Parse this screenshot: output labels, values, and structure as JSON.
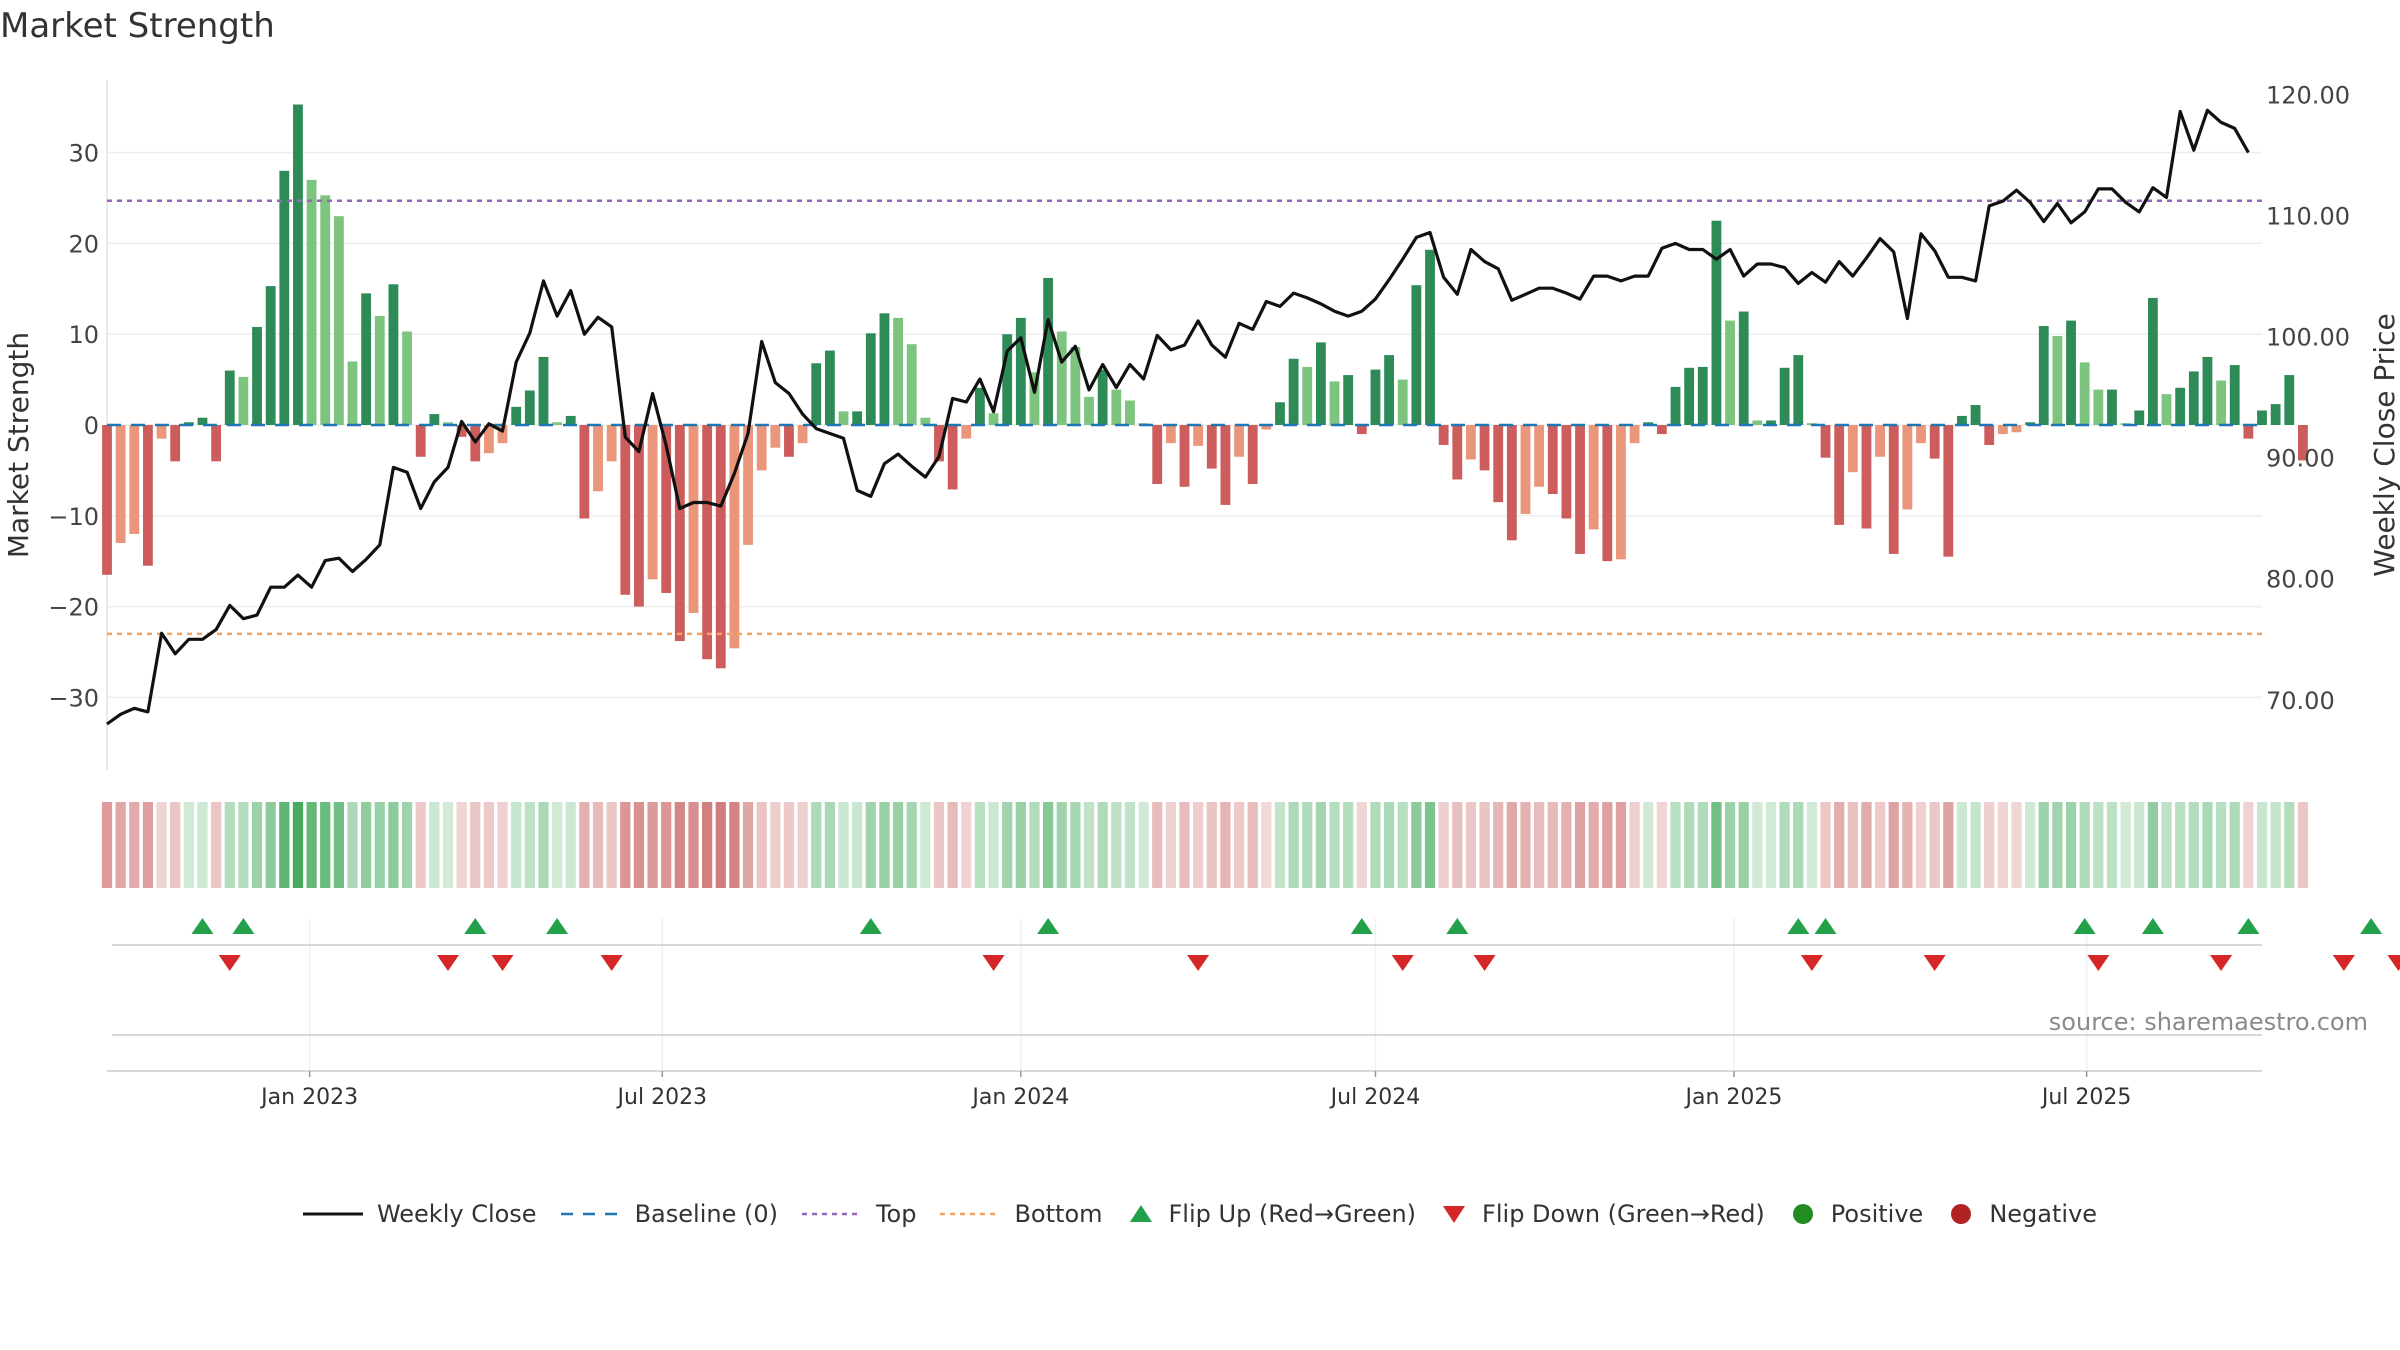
{
  "title": "Market Strength",
  "source": "source: sharemaestro.com",
  "colors": {
    "pos_dark": "#2e8b57",
    "pos_light": "#7dc47f",
    "neg_dark": "#cd5c5c",
    "neg_light": "#e9967a",
    "line": "#111111",
    "baseline": "#1f77b4",
    "top": "#9467bd",
    "bottom": "#f4a460",
    "flip_up": "#22a04a",
    "flip_down": "#d62728",
    "positive_dot": "#228b22",
    "negative_dot": "#b22222"
  },
  "legend": [
    {
      "label": "Weekly Close",
      "kind": "line"
    },
    {
      "label": "Baseline (0)",
      "kind": "baseline"
    },
    {
      "label": "Top",
      "kind": "top"
    },
    {
      "label": "Bottom",
      "kind": "bottom"
    },
    {
      "label": "Flip Up (Red→Green)",
      "kind": "flip_up"
    },
    {
      "label": "Flip Down (Green→Red)",
      "kind": "flip_down"
    },
    {
      "label": "Positive",
      "kind": "positive"
    },
    {
      "label": "Negative",
      "kind": "negative"
    }
  ],
  "chart_data": {
    "type": "bar+line",
    "x_range": [
      "2022-09-19",
      "2025-09-29"
    ],
    "x_ticks": [
      {
        "date": "2023-01-01",
        "label": "Jan 2023"
      },
      {
        "date": "2023-07-01",
        "label": "Jul 2023"
      },
      {
        "date": "2024-01-01",
        "label": "Jan 2024"
      },
      {
        "date": "2024-07-01",
        "label": "Jul 2024"
      },
      {
        "date": "2025-01-01",
        "label": "Jan 2025"
      },
      {
        "date": "2025-07-01",
        "label": "Jul 2025"
      }
    ],
    "start_date": "2022-09-19",
    "week_days": 7,
    "ylabel_left": "Market Strength",
    "ylabel_right": "Weekly Close Price",
    "ylim_left": [
      -38,
      38
    ],
    "ylim_right": [
      64.2,
      121.2
    ],
    "yticks_left": [
      30,
      20,
      10,
      0,
      -10,
      -20,
      -30
    ],
    "ytick_labels_left": [
      "30",
      "20",
      "10",
      "0",
      "−10",
      "−20",
      "−30"
    ],
    "yticks_right": [
      120,
      110,
      100,
      90,
      80,
      70
    ],
    "ytick_labels_right": [
      "120.00",
      "110.00",
      "100.00",
      "90.00",
      "80.00",
      "70.00"
    ],
    "top_line": 24.7,
    "bottom_line": -23.0,
    "strength": [
      -16.5,
      -13,
      -12,
      -15.5,
      -1.5,
      -4,
      0.3,
      0.8,
      -4,
      6,
      5.3,
      10.8,
      15.3,
      28,
      35.3,
      27,
      25.3,
      23,
      7,
      14.5,
      12,
      15.5,
      10.3,
      -3.5,
      1.2,
      0.3,
      -1.3,
      -4,
      -3.1,
      -2,
      2,
      3.8,
      7.5,
      0.3,
      1,
      -10.3,
      -7.3,
      -4,
      -18.7,
      -20,
      -17,
      -18.5,
      -23.8,
      -20.7,
      -25.8,
      -26.8,
      -24.6,
      -13.2,
      -5,
      -2.5,
      -3.5,
      -2,
      6.8,
      8.2,
      1.5,
      1.5,
      10.1,
      12.3,
      11.8,
      8.9,
      0.8,
      -4,
      -7.1,
      -1.5,
      4.1,
      1.3,
      10,
      11.8,
      5.8,
      16.2,
      10.3,
      8.6,
      3.1,
      6.1,
      3.9,
      2.7,
      0.2,
      -6.5,
      -2,
      -6.8,
      -2.3,
      -4.8,
      -8.8,
      -3.5,
      -6.5,
      -0.5,
      2.5,
      7.3,
      6.4,
      9.1,
      4.8,
      5.5,
      -1,
      6.1,
      7.7,
      5,
      15.4,
      19.3,
      -2.2,
      -6,
      -3.8,
      -5,
      -8.5,
      -12.7,
      -9.8,
      -6.8,
      -7.6,
      -10.3,
      -14.2,
      -11.5,
      -15,
      -14.8,
      -2,
      0.3,
      -1,
      4.2,
      6.3,
      6.4,
      22.5,
      11.5,
      12.5,
      0.5,
      0.5,
      6.3,
      7.7,
      0.2,
      -3.6,
      -11,
      -5.2,
      -11.4,
      -3.5,
      -14.2,
      -9.3,
      -2,
      -3.7,
      -14.5,
      1,
      2.2,
      -2.2,
      -1,
      -0.8,
      0.3,
      10.9,
      9.8,
      11.5,
      6.9,
      3.9,
      3.9,
      0.2,
      1.6,
      14,
      3.4,
      4.1,
      5.9,
      7.5,
      4.9,
      6.6,
      -1.5,
      1.6,
      2.3,
      5.5,
      -3.9
    ],
    "close": [
      68,
      68.8,
      69.3,
      69,
      75.5,
      73.8,
      75,
      75,
      75.8,
      77.8,
      76.7,
      77,
      79.3,
      79.3,
      80.3,
      79.3,
      81.5,
      81.7,
      80.6,
      81.6,
      82.8,
      89.2,
      88.8,
      85.8,
      88,
      89.2,
      93,
      91.3,
      92.8,
      92.2,
      97.9,
      100.3,
      104.6,
      101.7,
      103.8,
      100.2,
      101.6,
      100.8,
      91.7,
      90.5,
      95.3,
      91,
      85.8,
      86.3,
      86.3,
      86,
      88.7,
      92,
      99.6,
      96.2,
      95.3,
      93.6,
      92.4,
      92,
      91.6,
      87.3,
      86.8,
      89.5,
      90.3,
      89.3,
      88.4,
      90.1,
      94.9,
      94.6,
      96.5,
      93.8,
      98.8,
      99.9,
      95.4,
      101.4,
      97.9,
      99.2,
      95.6,
      97.7,
      95.8,
      97.7,
      96.5,
      100.1,
      98.9,
      99.3,
      101.3,
      99.3,
      98.3,
      101.1,
      100.6,
      102.9,
      102.5,
      103.6,
      103.2,
      102.7,
      102.1,
      101.7,
      102.1,
      103.1,
      104.7,
      106.4,
      108.2,
      108.6,
      104.9,
      103.5,
      107.2,
      106.2,
      105.6,
      103,
      103.5,
      104,
      104,
      103.6,
      103.1,
      105,
      105,
      104.6,
      105,
      105,
      107.3,
      107.7,
      107.2,
      107.2,
      106.4,
      107.2,
      105,
      106,
      106,
      105.7,
      104.4,
      105.3,
      104.5,
      106.2,
      105,
      106.5,
      108.1,
      107,
      101.5,
      108.5,
      107.1,
      104.9,
      104.9,
      104.6,
      110.8,
      111.2,
      112.1,
      111.1,
      109.5,
      111,
      109.4,
      110.3,
      112.2,
      112.2,
      111.1,
      110.3,
      112.3,
      111.5,
      118.6,
      115.4,
      118.7,
      117.7,
      117.2,
      115.2
    ],
    "regime_days": [
      {
        "from": 6,
        "to": 27
      },
      {
        "from": 28,
        "to": 28
      },
      {
        "from": 29,
        "to": 31
      },
      {
        "from": 33,
        "to": 33
      },
      {
        "from": 34,
        "to": 34
      },
      {
        "from": 35,
        "to": 43
      },
      {
        "from": 44,
        "to": 44
      }
    ],
    "flip_up_weeks": [
      7,
      10,
      27,
      33,
      56,
      69,
      92,
      99,
      124,
      126,
      145,
      150,
      157,
      166
    ],
    "flip_down_weeks": [
      9,
      25,
      29,
      37,
      65,
      80,
      95,
      101,
      125,
      134,
      146,
      155,
      164,
      168
    ],
    "series": [
      {
        "name": "Weekly Close",
        "axis": "right"
      },
      {
        "name": "Baseline (0)",
        "axis": "left"
      },
      {
        "name": "Top",
        "axis": "left"
      },
      {
        "name": "Bottom",
        "axis": "left"
      }
    ]
  }
}
